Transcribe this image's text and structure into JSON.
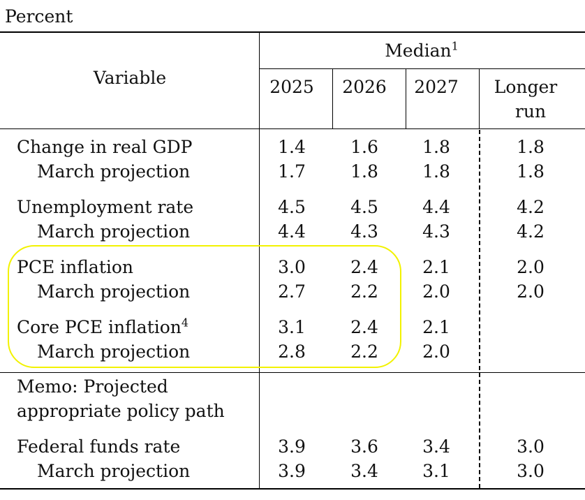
{
  "unit_label": "Percent",
  "header": {
    "variable": "Variable",
    "median": "Median",
    "median_note": "1",
    "years": [
      "2025",
      "2026",
      "2027"
    ],
    "longer_run_line1": "Longer",
    "longer_run_line2": "run"
  },
  "rows": [
    {
      "label": "Change in real GDP",
      "v": [
        "1.4",
        "1.6",
        "1.8",
        "1.8"
      ]
    },
    {
      "label": "March projection",
      "v": [
        "1.7",
        "1.8",
        "1.8",
        "1.8"
      ]
    },
    {
      "label": "Unemployment rate",
      "v": [
        "4.5",
        "4.5",
        "4.4",
        "4.2"
      ]
    },
    {
      "label": "March projection",
      "v": [
        "4.4",
        "4.3",
        "4.3",
        "4.2"
      ]
    },
    {
      "label": "PCE inflation",
      "v": [
        "3.0",
        "2.4",
        "2.1",
        "2.0"
      ]
    },
    {
      "label": "March projection",
      "v": [
        "2.7",
        "2.2",
        "2.0",
        "2.0"
      ]
    },
    {
      "label": "Core PCE inflation",
      "note": "4",
      "v": [
        "3.1",
        "2.4",
        "2.1",
        ""
      ]
    },
    {
      "label": "March projection",
      "v": [
        "2.8",
        "2.2",
        "2.0",
        ""
      ]
    }
  ],
  "memo": {
    "line1": "Memo: Projected",
    "line2": "appropriate policy path"
  },
  "memo_rows": [
    {
      "label": "Federal funds rate",
      "v": [
        "3.9",
        "3.6",
        "3.4",
        "3.0"
      ]
    },
    {
      "label": "March projection",
      "v": [
        "3.9",
        "3.4",
        "3.1",
        "3.0"
      ]
    }
  ],
  "highlight_color": "#f2f200"
}
